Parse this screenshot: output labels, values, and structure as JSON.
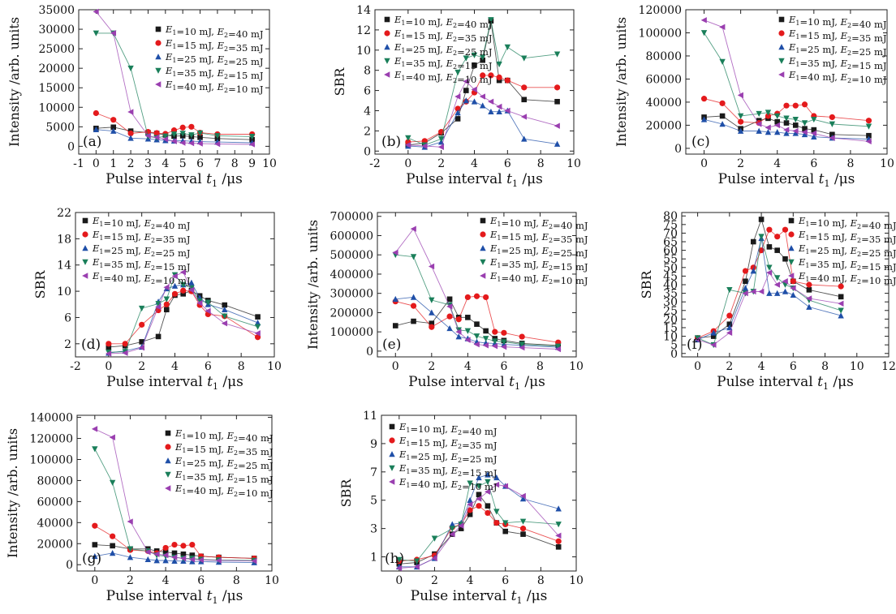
{
  "figure": {
    "colors": {
      "s1": "#1a1a1a",
      "s2": "#e41a1c",
      "s3": "#1f4fa8",
      "s4": "#1a7f5a",
      "s5": "#9a3fb0"
    },
    "markers": [
      "square",
      "circle",
      "triangle-up",
      "triangle-down",
      "triangle-left"
    ]
  },
  "chart_data": [
    {
      "type": "line",
      "panel_label": "(a)",
      "xlabel": "Pulse interval t1 /μs",
      "ylabel": "Intensity /arb. units",
      "xlim": [
        -1,
        10
      ],
      "ylim": [
        -2000,
        35000
      ],
      "xticks": [
        -1,
        0,
        1,
        2,
        3,
        4,
        5,
        6,
        7,
        8,
        9,
        10
      ],
      "yticks": [
        0,
        5000,
        10000,
        15000,
        20000,
        25000,
        30000,
        35000
      ],
      "x": [
        0,
        1,
        2,
        3,
        3.5,
        4,
        4.5,
        5,
        5.5,
        6,
        7,
        9
      ],
      "series": [
        {
          "name": "E1=10 mJ, E2=40 mJ",
          "values": [
            4600,
            4900,
            3900,
            3500,
            3300,
            2900,
            2600,
            2700,
            2500,
            2300,
            2000,
            1700
          ]
        },
        {
          "name": "E1=15 mJ, E2=35 mJ",
          "values": [
            8500,
            6800,
            3300,
            3700,
            3400,
            3200,
            4100,
            4800,
            5000,
            3500,
            3100,
            3100
          ]
        },
        {
          "name": "E1=25 mJ, E2=25 mJ",
          "values": [
            4300,
            3900,
            2100,
            1900,
            1700,
            1500,
            1400,
            1400,
            1300,
            1200,
            1100,
            900
          ]
        },
        {
          "name": "E1=35 mJ, E2=15 mJ",
          "values": [
            29000,
            29000,
            20000,
            2500,
            2200,
            2600,
            3100,
            3300,
            2900,
            3400,
            2700,
            2500
          ]
        },
        {
          "name": "E1=40 mJ, E2=10 mJ",
          "values": [
            34500,
            29000,
            8800,
            2700,
            2300,
            1800,
            1300,
            900,
            800,
            700,
            600,
            500
          ]
        }
      ]
    },
    {
      "type": "line",
      "panel_label": "(b)",
      "xlabel": "Pulse interval t1 /μs",
      "ylabel": "SBR",
      "xlim": [
        -2,
        10
      ],
      "ylim": [
        -0.3,
        14
      ],
      "xticks": [
        -2,
        0,
        2,
        4,
        6,
        8,
        10
      ],
      "yticks": [
        0,
        2,
        4,
        6,
        8,
        10,
        12,
        14
      ],
      "x": [
        0,
        1,
        2,
        3,
        3.5,
        4,
        4.5,
        5,
        5.5,
        6,
        7,
        9
      ],
      "series": [
        {
          "name": "E1=10 mJ, E2=40 mJ",
          "values": [
            0.6,
            0.8,
            1.8,
            3.2,
            6.0,
            8.5,
            9.0,
            12.9,
            7.0,
            7.0,
            5.1,
            4.9
          ]
        },
        {
          "name": "E1=15 mJ, E2=35 mJ",
          "values": [
            0.9,
            1.0,
            1.9,
            4.2,
            4.9,
            5.8,
            7.5,
            7.5,
            7.3,
            7.0,
            6.3,
            6.3
          ]
        },
        {
          "name": "E1=25 mJ, E2=25 mJ",
          "values": [
            0.5,
            0.4,
            0.9,
            3.8,
            5.0,
            4.9,
            4.5,
            3.9,
            3.9,
            4.0,
            1.2,
            0.7
          ]
        },
        {
          "name": "E1=35 mJ, E2=15 mJ",
          "values": [
            1.3,
            0.6,
            1.2,
            7.8,
            9.2,
            9.5,
            9.3,
            13.0,
            8.6,
            10.3,
            9.2,
            9.6
          ]
        },
        {
          "name": "E1=40 mJ, E2=10 mJ",
          "values": [
            0.6,
            0.5,
            0.4,
            5.4,
            6.9,
            6.1,
            5.4,
            4.9,
            4.4,
            4.0,
            3.4,
            2.5
          ]
        }
      ]
    },
    {
      "type": "line",
      "panel_label": "(c)",
      "xlabel": "Pulse interval t1 /μs",
      "ylabel": "Intensity /arb. units",
      "xlim": [
        -1,
        10
      ],
      "ylim": [
        -5000,
        120000
      ],
      "xticks": [
        0,
        2,
        4,
        6,
        8,
        10
      ],
      "yticks": [
        0,
        20000,
        40000,
        60000,
        80000,
        100000,
        120000
      ],
      "x": [
        0,
        1,
        2,
        3,
        3.5,
        4,
        4.5,
        5,
        5.5,
        6,
        7,
        9
      ],
      "series": [
        {
          "name": "E1=10 mJ, E2=40 mJ",
          "values": [
            27000,
            28000,
            17000,
            24000,
            26000,
            23000,
            22000,
            20000,
            17000,
            16000,
            12000,
            11000
          ]
        },
        {
          "name": "E1=15 mJ, E2=35 mJ",
          "values": [
            43000,
            39000,
            23000,
            22000,
            28000,
            30000,
            37000,
            37000,
            38000,
            28000,
            27000,
            24000
          ]
        },
        {
          "name": "E1=25 mJ, E2=25 mJ",
          "values": [
            25000,
            21000,
            15000,
            15000,
            14000,
            14000,
            13000,
            13000,
            12000,
            10000,
            9000,
            8000
          ]
        },
        {
          "name": "E1=35 mJ, E2=15 mJ",
          "values": [
            100000,
            75000,
            28000,
            30000,
            31000,
            28000,
            26000,
            25000,
            22000,
            25000,
            21000,
            19000
          ]
        },
        {
          "name": "E1=40 mJ, E2=10 mJ",
          "values": [
            111000,
            105000,
            46000,
            21000,
            18000,
            20000,
            16000,
            15000,
            14000,
            13000,
            9000,
            6000
          ]
        }
      ]
    },
    {
      "type": "line",
      "panel_label": "(d)",
      "xlabel": "Pulse interval t1 /μs",
      "ylabel": "SBR",
      "xlim": [
        -2,
        10
      ],
      "ylim": [
        0,
        22
      ],
      "xticks": [
        -2,
        0,
        2,
        4,
        6,
        8,
        10
      ],
      "yticks": [
        2,
        6,
        10,
        14,
        18,
        22
      ],
      "x": [
        0,
        1,
        2,
        3,
        3.5,
        4,
        4.5,
        5,
        5.5,
        6,
        7,
        9
      ],
      "series": [
        {
          "name": "E1=10 mJ, E2=40 mJ",
          "values": [
            1.5,
            1.7,
            2.3,
            3.1,
            7.2,
            9.4,
            9.6,
            10.1,
            9.3,
            8.6,
            7.9,
            6.1
          ]
        },
        {
          "name": "E1=15 mJ, E2=35 mJ",
          "values": [
            2.0,
            2.0,
            4.9,
            7.1,
            8.0,
            9.6,
            10.1,
            10.0,
            7.9,
            6.5,
            6.2,
            3.0
          ]
        },
        {
          "name": "E1=25 mJ, E2=25 mJ",
          "values": [
            0.6,
            0.9,
            1.5,
            8.4,
            10.4,
            10.8,
            11.0,
            11.3,
            9.0,
            8.0,
            7.2,
            5.2
          ]
        },
        {
          "name": "E1=35 mJ, E2=15 mJ",
          "values": [
            0.7,
            0.8,
            7.4,
            8.1,
            8.8,
            12.5,
            11.0,
            10.5,
            8.5,
            8.3,
            6.2,
            4.6
          ]
        },
        {
          "name": "E1=40 mJ, E2=10 mJ",
          "values": [
            0.5,
            0.6,
            1.4,
            7.6,
            10.6,
            12.3,
            12.9,
            10.2,
            8.2,
            7.0,
            5.1,
            3.6
          ]
        }
      ]
    },
    {
      "type": "line",
      "panel_label": "(e)",
      "xlabel": "Pulse interval t1 /μs",
      "ylabel": "Intensity /arb. units",
      "xlim": [
        -1,
        10
      ],
      "ylim": [
        -30000,
        720000
      ],
      "xticks": [
        0,
        2,
        4,
        6,
        8,
        10
      ],
      "yticks": [
        0,
        100000,
        200000,
        300000,
        400000,
        500000,
        600000,
        700000
      ],
      "x": [
        0,
        1,
        2,
        3,
        3.5,
        4,
        4.5,
        5,
        5.5,
        6,
        7,
        9
      ],
      "series": [
        {
          "name": "E1=10 mJ, E2=40 mJ",
          "values": [
            132000,
            155000,
            144000,
            270000,
            175000,
            175000,
            140000,
            105000,
            65000,
            55000,
            40000,
            30000
          ]
        },
        {
          "name": "E1=15 mJ, E2=35 mJ",
          "values": [
            258000,
            235000,
            125000,
            180000,
            165000,
            280000,
            285000,
            280000,
            100000,
            95000,
            75000,
            45000
          ]
        },
        {
          "name": "E1=25 mJ, E2=25 mJ",
          "values": [
            270000,
            280000,
            200000,
            118000,
            75000,
            65000,
            48000,
            42000,
            40000,
            35000,
            30000,
            20000
          ]
        },
        {
          "name": "E1=35 mJ, E2=15 mJ",
          "values": [
            500000,
            490000,
            265000,
            240000,
            110000,
            105000,
            78000,
            65000,
            52000,
            48000,
            35000,
            25000
          ]
        },
        {
          "name": "E1=40 mJ, E2=10 mJ",
          "values": [
            512000,
            635000,
            440000,
            232000,
            100000,
            58000,
            35000,
            30000,
            26000,
            22000,
            18000,
            10000
          ]
        }
      ]
    },
    {
      "type": "line",
      "panel_label": "(f)",
      "xlabel": "Pulse interval t1 /μs",
      "ylabel": "SBR",
      "xlim": [
        -1,
        12
      ],
      "ylim": [
        -2,
        82
      ],
      "xticks": [
        0,
        2,
        4,
        6,
        8,
        10,
        12
      ],
      "yticks": [
        0,
        5,
        10,
        15,
        20,
        25,
        30,
        35,
        40,
        45,
        50,
        55,
        60,
        65,
        70,
        75,
        80
      ],
      "x": [
        0,
        1,
        2,
        3,
        3.5,
        4,
        4.5,
        5,
        5.5,
        6,
        7,
        9
      ],
      "series": [
        {
          "name": "E1=10 mJ, E2=40 mJ",
          "values": [
            9,
            10,
            17,
            42,
            65,
            78,
            62,
            60,
            55,
            42,
            37,
            33
          ]
        },
        {
          "name": "E1=15 mJ, E2=35 mJ",
          "values": [
            9,
            13,
            22,
            48,
            50,
            60,
            72,
            68,
            72,
            42,
            40,
            39
          ]
        },
        {
          "name": "E1=25 mJ, E2=25 mJ",
          "values": [
            8,
            12,
            15,
            38,
            48,
            67,
            35,
            35,
            36,
            34,
            27,
            22
          ]
        },
        {
          "name": "E1=35 mJ, E2=15 mJ",
          "values": [
            9,
            5,
            37,
            35,
            36,
            68,
            50,
            44,
            40,
            38,
            31,
            25
          ]
        },
        {
          "name": "E1=40 mJ, E2=10 mJ",
          "values": [
            8,
            5,
            12,
            35,
            36,
            36,
            47,
            40,
            42,
            38,
            32,
            29
          ]
        }
      ]
    },
    {
      "type": "line",
      "panel_label": "(g)",
      "xlabel": "Pulse interval t1 /μs",
      "ylabel": "Intensity /arb. units",
      "xlim": [
        -1,
        10
      ],
      "ylim": [
        -6000,
        142000
      ],
      "xticks": [
        0,
        2,
        4,
        6,
        8,
        10
      ],
      "yticks": [
        0,
        20000,
        40000,
        60000,
        80000,
        100000,
        120000,
        140000
      ],
      "x": [
        0,
        1,
        2,
        3,
        3.5,
        4,
        4.5,
        5,
        5.5,
        6,
        7,
        9
      ],
      "series": [
        {
          "name": "E1=10 mJ, E2=40 mJ",
          "values": [
            19000,
            18000,
            15000,
            15000,
            13000,
            12000,
            11000,
            10000,
            9000,
            8000,
            7000,
            6000
          ]
        },
        {
          "name": "E1=15 mJ, E2=35 mJ",
          "values": [
            37000,
            27000,
            14000,
            13000,
            11000,
            16000,
            19000,
            18000,
            19000,
            8000,
            7000,
            6000
          ]
        },
        {
          "name": "E1=25 mJ, E2=25 mJ",
          "values": [
            8000,
            11000,
            7000,
            5000,
            4000,
            4000,
            3500,
            3500,
            3000,
            3000,
            2500,
            2000
          ]
        },
        {
          "name": "E1=35 mJ, E2=15 mJ",
          "values": [
            110000,
            78000,
            15000,
            13000,
            9000,
            8000,
            7000,
            6000,
            6000,
            5000,
            4500,
            4000
          ]
        },
        {
          "name": "E1=40 mJ, E2=10 mJ",
          "values": [
            129000,
            121000,
            41000,
            12000,
            10000,
            9000,
            7000,
            6000,
            5000,
            4500,
            4000,
            3500
          ]
        }
      ]
    },
    {
      "type": "line",
      "panel_label": "(h)",
      "xlabel": "Pulse interval t1 /μs",
      "ylabel": "SBR",
      "xlim": [
        -1,
        10
      ],
      "ylim": [
        0,
        11
      ],
      "xticks": [
        0,
        2,
        4,
        6,
        8,
        10
      ],
      "yticks": [
        1,
        3,
        5,
        7,
        9,
        11
      ],
      "x": [
        0,
        1,
        2,
        3,
        3.5,
        4,
        4.5,
        5,
        5.5,
        6,
        7,
        9
      ],
      "series": [
        {
          "name": "E1=10 mJ, E2=40 mJ",
          "values": [
            0.5,
            0.6,
            1.2,
            2.6,
            3.0,
            4.0,
            5.4,
            4.6,
            3.4,
            2.8,
            2.6,
            1.7
          ]
        },
        {
          "name": "E1=15 mJ, E2=35 mJ",
          "values": [
            0.7,
            0.8,
            1.1,
            3.1,
            3.3,
            4.3,
            4.6,
            4.1,
            3.4,
            3.3,
            3.0,
            2.1
          ]
        },
        {
          "name": "E1=25 mJ, E2=25 mJ",
          "values": [
            0.3,
            0.3,
            0.9,
            3.3,
            3.4,
            5.0,
            6.6,
            6.8,
            6.6,
            6.0,
            5.1,
            4.4
          ]
        },
        {
          "name": "E1=35 mJ, E2=15 mJ",
          "values": [
            0.8,
            0.7,
            2.3,
            3.0,
            3.3,
            6.2,
            6.0,
            6.3,
            4.2,
            3.4,
            3.5,
            3.3
          ]
        },
        {
          "name": "E1=40 mJ, E2=10 mJ",
          "values": [
            0.2,
            0.3,
            0.9,
            2.6,
            3.2,
            4.7,
            5.1,
            5.6,
            6.1,
            6.0,
            5.3,
            2.5
          ]
        }
      ]
    }
  ]
}
